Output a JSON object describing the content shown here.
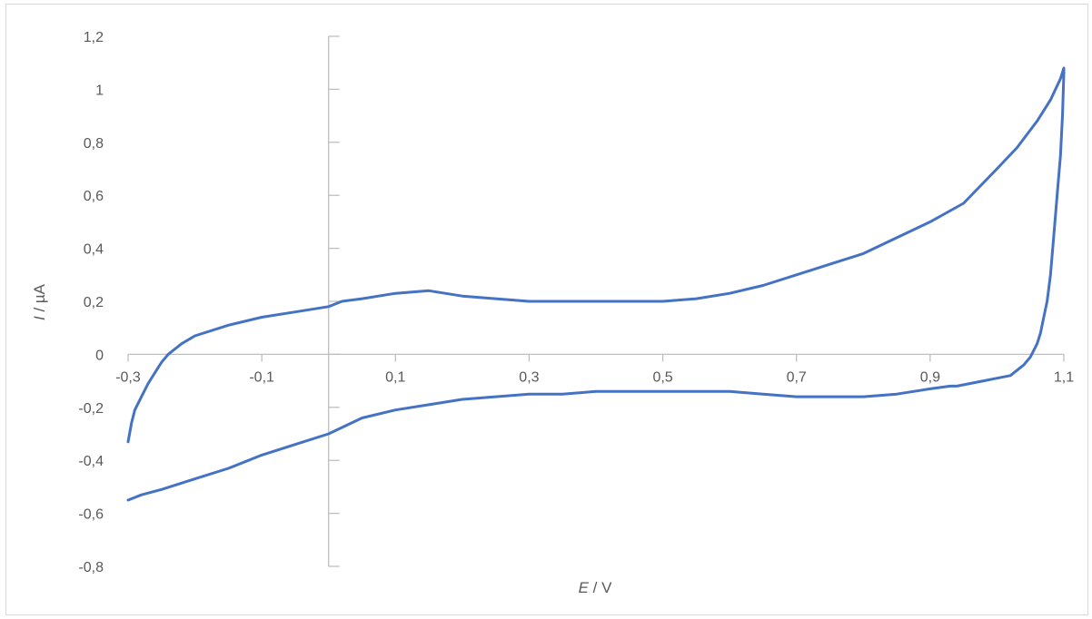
{
  "chart_data": {
    "type": "line",
    "title": "",
    "xlabel": {
      "symbol": "E",
      "unit": " / V"
    },
    "ylabel": {
      "symbol": "I",
      "unit": " / µA"
    },
    "xlim": [
      -0.3,
      1.1
    ],
    "ylim": [
      -0.8,
      1.2
    ],
    "x_ticks": [
      -0.3,
      -0.1,
      0.1,
      0.3,
      0.5,
      0.7,
      0.9,
      1.1
    ],
    "x_tick_labels": [
      "-0,3",
      "-0,1",
      "0,1",
      "0,3",
      "0,5",
      "0,7",
      "0,9",
      "1,1"
    ],
    "y_ticks": [
      1.2,
      1,
      0.8,
      0.6,
      0.4,
      0.2,
      0,
      -0.2,
      -0.4,
      -0.6,
      -0.8
    ],
    "y_tick_labels": [
      "1,2",
      "1",
      "0,8",
      "0,6",
      "0,4",
      "0,2",
      "0",
      "-0,2",
      "-0,4",
      "-0,6",
      "-0,8"
    ],
    "grid": false,
    "legend": "none",
    "series_color": "#4472c4",
    "series": [
      {
        "x": [
          -0.3,
          -0.295,
          -0.29,
          -0.28,
          -0.27,
          -0.26,
          -0.25,
          -0.24,
          -0.22,
          -0.2,
          -0.15,
          -0.1,
          -0.05,
          0.0,
          0.02,
          0.05,
          0.1,
          0.15,
          0.2,
          0.25,
          0.3,
          0.35,
          0.4,
          0.45,
          0.5,
          0.55,
          0.6,
          0.65,
          0.7,
          0.75,
          0.8,
          0.85,
          0.9,
          0.95,
          1.0,
          1.03,
          1.06,
          1.08,
          1.095,
          1.1,
          1.1,
          1.098,
          1.095,
          1.09,
          1.085,
          1.08,
          1.075,
          1.07,
          1.065,
          1.06,
          1.05,
          1.04,
          1.03,
          1.02,
          1.0,
          0.98,
          0.96,
          0.94,
          0.93,
          0.9,
          0.85,
          0.8,
          0.75,
          0.7,
          0.65,
          0.6,
          0.55,
          0.5,
          0.45,
          0.4,
          0.35,
          0.3,
          0.25,
          0.2,
          0.15,
          0.1,
          0.05,
          0.0,
          -0.05,
          -0.1,
          -0.15,
          -0.2,
          -0.25,
          -0.28,
          -0.3
        ],
        "y": [
          -0.33,
          -0.26,
          -0.21,
          -0.16,
          -0.11,
          -0.07,
          -0.03,
          0.0,
          0.04,
          0.07,
          0.11,
          0.14,
          0.16,
          0.18,
          0.2,
          0.21,
          0.23,
          0.24,
          0.22,
          0.21,
          0.2,
          0.2,
          0.2,
          0.2,
          0.2,
          0.21,
          0.23,
          0.26,
          0.3,
          0.34,
          0.38,
          0.44,
          0.5,
          0.57,
          0.7,
          0.78,
          0.88,
          0.96,
          1.04,
          1.08,
          1.06,
          0.9,
          0.75,
          0.6,
          0.45,
          0.3,
          0.2,
          0.14,
          0.08,
          0.04,
          -0.01,
          -0.04,
          -0.06,
          -0.08,
          -0.09,
          -0.1,
          -0.11,
          -0.12,
          -0.12,
          -0.13,
          -0.15,
          -0.16,
          -0.16,
          -0.16,
          -0.15,
          -0.14,
          -0.14,
          -0.14,
          -0.14,
          -0.14,
          -0.15,
          -0.15,
          -0.16,
          -0.17,
          -0.19,
          -0.21,
          -0.24,
          -0.3,
          -0.34,
          -0.38,
          -0.43,
          -0.47,
          -0.51,
          -0.53,
          -0.55
        ]
      }
    ]
  }
}
